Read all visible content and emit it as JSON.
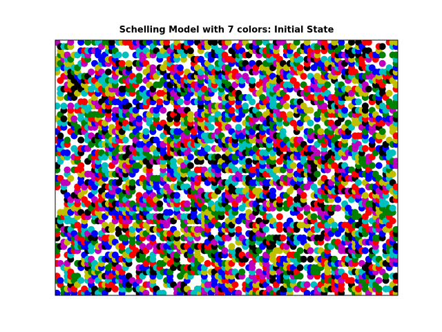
{
  "chart_data": {
    "type": "scatter",
    "title": "Schelling Model with 7 colors: Initial State",
    "xlabel": "",
    "ylabel": "",
    "grid": false,
    "legend": "none",
    "axis_ticks": "none",
    "xlim": [
      0,
      100
    ],
    "ylim": [
      0,
      60
    ],
    "grid_size": {
      "cols": 100,
      "rows": 60
    },
    "occupancy_fraction": 0.55,
    "agent_colors": [
      {
        "key": "b",
        "hex": "#0000ff"
      },
      {
        "key": "r",
        "hex": "#ff0000"
      },
      {
        "key": "g",
        "hex": "#008000"
      },
      {
        "key": "c",
        "hex": "#00bfbf"
      },
      {
        "key": "m",
        "hex": "#bf00bf"
      },
      {
        "key": "y",
        "hex": "#bfbf00"
      },
      {
        "key": "k",
        "hex": "#000000"
      }
    ],
    "seed": 7
  }
}
